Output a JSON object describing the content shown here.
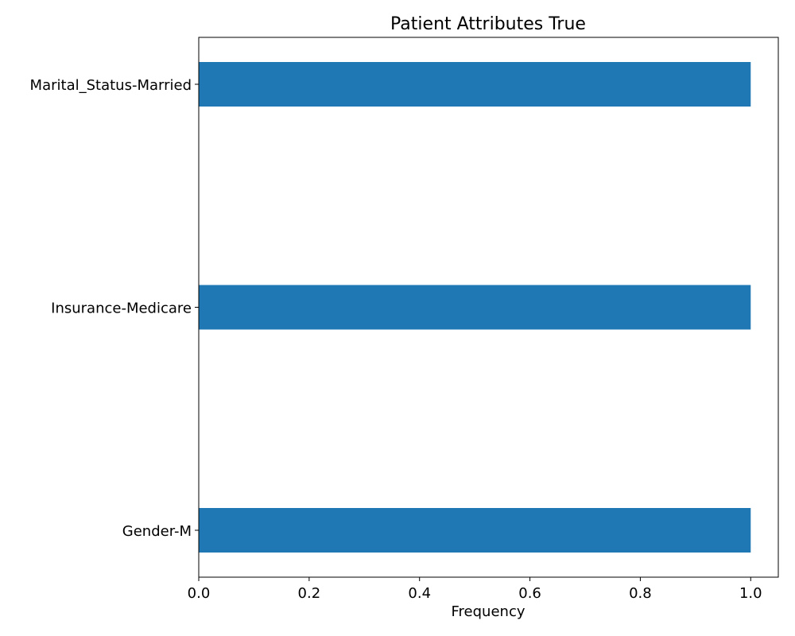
{
  "chart_data": {
    "type": "bar",
    "orientation": "horizontal",
    "title": "Patient Attributes True",
    "xlabel": "Frequency",
    "ylabel": "",
    "categories": [
      "Marital_Status-Married",
      "Insurance-Medicare",
      "Gender-M"
    ],
    "values": [
      1.0,
      1.0,
      1.0
    ],
    "xlim": [
      0.0,
      1.05
    ],
    "xticks": [
      "0.0",
      "0.2",
      "0.4",
      "0.6",
      "0.8",
      "1.0"
    ],
    "grid": false,
    "legend": "none",
    "bar_color": "#1f77b4"
  }
}
